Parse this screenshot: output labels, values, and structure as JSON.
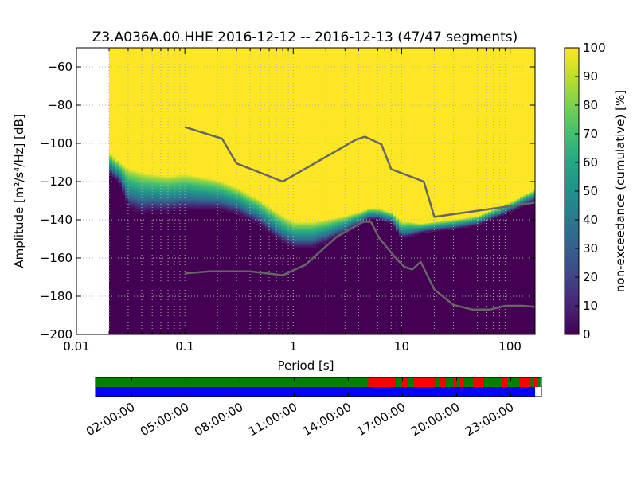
{
  "chart_data": {
    "type": "heatmap",
    "title": "Z3.A036A.00.HHE   2016-12-12 -- 2016-12-13  (47/47 segments)",
    "xlabel": "Period [s]",
    "ylabel": "Amplitude [m²/s⁴/Hz] [dB]",
    "x_scale": "log",
    "xlim": [
      0.01,
      170
    ],
    "ylim": [
      -200,
      -50
    ],
    "x_ticks": [
      {
        "value": 0.01,
        "label": "0.01"
      },
      {
        "value": 0.1,
        "label": "0.1"
      },
      {
        "value": 1,
        "label": "1"
      },
      {
        "value": 10,
        "label": "10"
      },
      {
        "value": 100,
        "label": "100"
      }
    ],
    "y_ticks": [
      -60,
      -80,
      -100,
      -120,
      -140,
      -160,
      -180,
      -200
    ],
    "y_tick_labels": [
      "−60",
      "−80",
      "−100",
      "−120",
      "−140",
      "−160",
      "−180",
      "−200"
    ],
    "grid": true,
    "colorbar": {
      "label": "non-exceedance (cumulative) [%]",
      "range": [
        0,
        100
      ],
      "ticks": [
        "0",
        "10",
        "20",
        "30",
        "40",
        "50",
        "60",
        "70",
        "80",
        "90",
        "100"
      ],
      "colormap": "viridis"
    },
    "data_period_start": 0.02,
    "lower_edge": {
      "periods": [
        0.02,
        0.025,
        0.03,
        0.04,
        0.05,
        0.07,
        0.1,
        0.2,
        0.3,
        0.5,
        0.7,
        1,
        1.5,
        2,
        3,
        4,
        5,
        6,
        8,
        10,
        12,
        15,
        20,
        30,
        50,
        100,
        170
      ],
      "db": [
        -116,
        -121,
        -134,
        -137,
        -136,
        -136,
        -135,
        -135,
        -137,
        -143,
        -150,
        -155,
        -155,
        -152,
        -147,
        -143,
        -140,
        -140,
        -142,
        -150,
        -149,
        -147,
        -146,
        -145,
        -143,
        -136,
        -130
      ]
    },
    "upper_edge": {
      "periods": [
        0.02,
        0.025,
        0.03,
        0.04,
        0.05,
        0.07,
        0.1,
        0.2,
        0.3,
        0.5,
        0.7,
        1,
        1.5,
        2,
        3,
        4,
        5,
        6,
        8,
        10,
        12,
        15,
        20,
        30,
        50,
        100,
        170
      ],
      "db": [
        -105,
        -110,
        -113,
        -115,
        -116,
        -117,
        -116,
        -119,
        -123,
        -130,
        -136,
        -141,
        -141,
        -140,
        -138,
        -136,
        -134,
        -134,
        -136,
        -141,
        -141,
        -142,
        -141,
        -140,
        -138,
        -131,
        -124
      ]
    },
    "series": [
      {
        "periods": [
          0.1,
          0.22,
          0.3,
          0.8,
          3.8,
          4.6,
          6.5,
          8,
          16,
          20,
          170
        ],
        "db": [
          -91.5,
          -97.5,
          -110.5,
          -120,
          -98,
          -96.5,
          -100.5,
          -113.5,
          -120,
          -138.5,
          -131
        ]
      },
      {
        "periods": [
          0.1,
          0.17,
          0.4,
          0.8,
          1.3,
          2.5,
          4.4,
          5.2,
          6.2,
          8.5,
          10.5,
          12.5,
          15,
          20,
          30,
          45,
          65,
          90,
          130,
          170
        ],
        "db": [
          -168,
          -167,
          -167,
          -169,
          -163.5,
          -149,
          -141,
          -141,
          -149.5,
          -159,
          -164.5,
          -166,
          -162,
          -176.5,
          -184.5,
          -187,
          -187,
          -185,
          -185,
          -185.5
        ]
      }
    ],
    "timeline": {
      "ticks": [
        "02:00:00",
        "05:00:00",
        "08:00:00",
        "11:00:00",
        "14:00:00",
        "17:00:00",
        "20:00:00",
        "23:00:00"
      ],
      "tick_hours": [
        2,
        5,
        8,
        11,
        14,
        17,
        20,
        23
      ],
      "range_hours": [
        0,
        24.7
      ],
      "top_bar": {
        "base_color": "#008000",
        "flag_color": "#ff0000",
        "flagged_spans_hours": [
          [
            15.1,
            16.6
          ],
          [
            16.9,
            17.3
          ],
          [
            17.6,
            18.8
          ],
          [
            19.1,
            19.4
          ],
          [
            19.8,
            20.0
          ],
          [
            20.2,
            20.4
          ],
          [
            20.9,
            21.5
          ],
          [
            22.5,
            22.8
          ],
          [
            23.5,
            24.1
          ],
          [
            24.3,
            24.5
          ]
        ],
        "end_hours": 24.65
      },
      "bottom_bar": {
        "color": "#0000ff",
        "end_hours": 24.35
      }
    }
  }
}
